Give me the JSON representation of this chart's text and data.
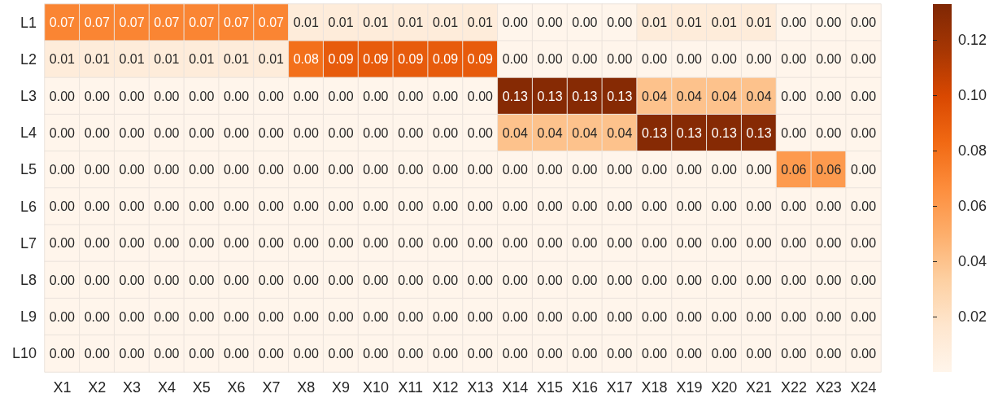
{
  "chart_data": {
    "type": "heatmap",
    "categories": [
      "X1",
      "X2",
      "X3",
      "X4",
      "X5",
      "X6",
      "X7",
      "X8",
      "X9",
      "X10",
      "X11",
      "X12",
      "X13",
      "X14",
      "X15",
      "X16",
      "X17",
      "X18",
      "X19",
      "X20",
      "X21",
      "X22",
      "X23",
      "X24"
    ],
    "y_categories": [
      "L1",
      "L2",
      "L3",
      "L4",
      "L5",
      "L6",
      "L7",
      "L8",
      "L9",
      "L10"
    ],
    "cells": [
      [
        0.07,
        0.07,
        0.07,
        0.07,
        0.07,
        0.07,
        0.07,
        0.01,
        0.01,
        0.01,
        0.01,
        0.01,
        0.01,
        0,
        0,
        0,
        0,
        0.01,
        0.01,
        0.01,
        0.01,
        0,
        0,
        0
      ],
      [
        0.01,
        0.01,
        0.01,
        0.01,
        0.01,
        0.01,
        0.01,
        0.08,
        0.09,
        0.09,
        0.09,
        0.09,
        0.09,
        0,
        0,
        0,
        0,
        0,
        0,
        0,
        0,
        0,
        0,
        0
      ],
      [
        0,
        0,
        0,
        0,
        0,
        0,
        0,
        0,
        0,
        0,
        0,
        0,
        0,
        0.13,
        0.13,
        0.13,
        0.13,
        0.04,
        0.04,
        0.04,
        0.04,
        0,
        0,
        0
      ],
      [
        0,
        0,
        0,
        0,
        0,
        0,
        0,
        0,
        0,
        0,
        0,
        0,
        0,
        0.04,
        0.04,
        0.04,
        0.04,
        0.13,
        0.13,
        0.13,
        0.13,
        0,
        0,
        0
      ],
      [
        0,
        0,
        0,
        0,
        0,
        0,
        0,
        0,
        0,
        0,
        0,
        0,
        0,
        0,
        0,
        0,
        0,
        0,
        0,
        0,
        0,
        0.06,
        0.06,
        0
      ],
      [
        0,
        0,
        0,
        0,
        0,
        0,
        0,
        0,
        0,
        0,
        0,
        0,
        0,
        0,
        0,
        0,
        0,
        0,
        0,
        0,
        0,
        0,
        0,
        0
      ],
      [
        0,
        0,
        0,
        0,
        0,
        0,
        0,
        0,
        0,
        0,
        0,
        0,
        0,
        0,
        0,
        0,
        0,
        0,
        0,
        0,
        0,
        0,
        0,
        0
      ],
      [
        0,
        0,
        0,
        0,
        0,
        0,
        0,
        0,
        0,
        0,
        0,
        0,
        0,
        0,
        0,
        0,
        0,
        0,
        0,
        0,
        0,
        0,
        0,
        0
      ],
      [
        0,
        0,
        0,
        0,
        0,
        0,
        0,
        0,
        0,
        0,
        0,
        0,
        0,
        0,
        0,
        0,
        0,
        0,
        0,
        0,
        0,
        0,
        0,
        0
      ],
      [
        0,
        0,
        0,
        0,
        0,
        0,
        0,
        0,
        0,
        0,
        0,
        0,
        0,
        0,
        0,
        0,
        0,
        0,
        0,
        0,
        0,
        0,
        0,
        0
      ]
    ],
    "cell_labels": [
      [
        "0.07",
        "0.07",
        "0.07",
        "0.07",
        "0.07",
        "0.07",
        "0.07",
        "0.01",
        "0.01",
        "0.01",
        "0.01",
        "0.01",
        "0.01",
        "0.00",
        "0.00",
        "0.00",
        "0.00",
        "0.01",
        "0.01",
        "0.01",
        "0.01",
        "0.00",
        "0.00",
        "0.00"
      ],
      [
        "0.01",
        "0.01",
        "0.01",
        "0.01",
        "0.01",
        "0.01",
        "0.01",
        "0.08",
        "0.09",
        "0.09",
        "0.09",
        "0.09",
        "0.09",
        "0.00",
        "0.00",
        "0.00",
        "0.00",
        "0.00",
        "0.00",
        "0.00",
        "0.00",
        "0.00",
        "0.00",
        "0.00"
      ],
      [
        "0.00",
        "0.00",
        "0.00",
        "0.00",
        "0.00",
        "0.00",
        "0.00",
        "0.00",
        "0.00",
        "0.00",
        "0.00",
        "0.00",
        "0.00",
        "0.13",
        "0.13",
        "0.13",
        "0.13",
        "0.04",
        "0.04",
        "0.04",
        "0.04",
        "0.00",
        "0.00",
        "0.00"
      ],
      [
        "0.00",
        "0.00",
        "0.00",
        "0.00",
        "0.00",
        "0.00",
        "0.00",
        "0.00",
        "0.00",
        "0.00",
        "0.00",
        "0.00",
        "0.00",
        "0.04",
        "0.04",
        "0.04",
        "0.04",
        "0.13",
        "0.13",
        "0.13",
        "0.13",
        "0.00",
        "0.00",
        "0.00"
      ],
      [
        "0.00",
        "0.00",
        "0.00",
        "0.00",
        "0.00",
        "0.00",
        "0.00",
        "0.00",
        "0.00",
        "0.00",
        "0.00",
        "0.00",
        "0.00",
        "0.00",
        "0.00",
        "0.00",
        "0.00",
        "0.00",
        "0.00",
        "0.00",
        "0.00",
        "0.06",
        "0.06",
        "0.00"
      ],
      [
        "0.00",
        "0.00",
        "0.00",
        "0.00",
        "0.00",
        "0.00",
        "0.00",
        "0.00",
        "0.00",
        "0.00",
        "0.00",
        "0.00",
        "0.00",
        "0.00",
        "0.00",
        "0.00",
        "0.00",
        "0.00",
        "0.00",
        "0.00",
        "0.00",
        "0.00",
        "0.00",
        "0.00"
      ],
      [
        "0.00",
        "0.00",
        "0.00",
        "0.00",
        "0.00",
        "0.00",
        "0.00",
        "0.00",
        "0.00",
        "0.00",
        "0.00",
        "0.00",
        "0.00",
        "0.00",
        "0.00",
        "0.00",
        "0.00",
        "0.00",
        "0.00",
        "0.00",
        "0.00",
        "0.00",
        "0.00",
        "0.00"
      ],
      [
        "0.00",
        "0.00",
        "0.00",
        "0.00",
        "0.00",
        "0.00",
        "0.00",
        "0.00",
        "0.00",
        "0.00",
        "0.00",
        "0.00",
        "0.00",
        "0.00",
        "0.00",
        "0.00",
        "0.00",
        "0.00",
        "0.00",
        "0.00",
        "0.00",
        "0.00",
        "0.00",
        "0.00"
      ],
      [
        "0.00",
        "0.00",
        "0.00",
        "0.00",
        "0.00",
        "0.00",
        "0.00",
        "0.00",
        "0.00",
        "0.00",
        "0.00",
        "0.00",
        "0.00",
        "0.00",
        "0.00",
        "0.00",
        "0.00",
        "0.00",
        "0.00",
        "0.00",
        "0.00",
        "0.00",
        "0.00",
        "0.00"
      ],
      [
        "0.00",
        "0.00",
        "0.00",
        "0.00",
        "0.00",
        "0.00",
        "0.00",
        "0.00",
        "0.00",
        "0.00",
        "0.00",
        "0.00",
        "0.00",
        "0.00",
        "0.00",
        "0.00",
        "0.00",
        "0.00",
        "0.00",
        "0.00",
        "0.00",
        "0.00",
        "0.00",
        "0.00"
      ]
    ],
    "clim": [
      0,
      0.133
    ],
    "cticks": [
      {
        "value": 0.02,
        "label": "0.02"
      },
      {
        "value": 0.04,
        "label": "0.04"
      },
      {
        "value": 0.06,
        "label": "0.06"
      },
      {
        "value": 0.08,
        "label": "0.08"
      },
      {
        "value": 0.1,
        "label": "0.10"
      },
      {
        "value": 0.12,
        "label": "0.12"
      }
    ]
  }
}
